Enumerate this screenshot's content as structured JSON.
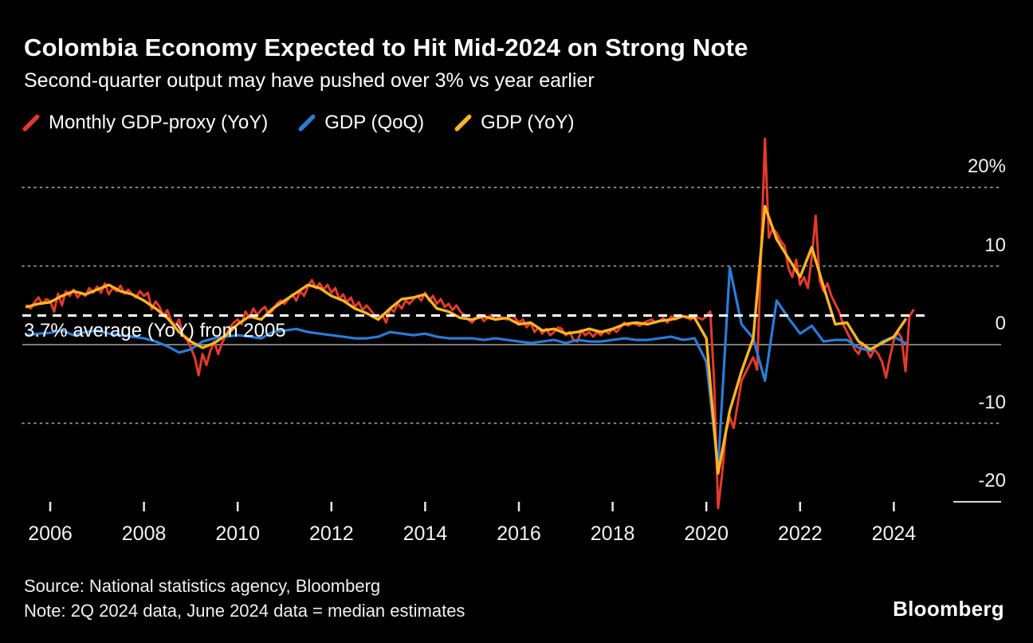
{
  "header": {
    "title": "Colombia Economy Expected to Hit Mid-2024 on Strong Note",
    "subtitle": "Second-quarter output may have pushed over 3% vs year earlier"
  },
  "legend": [
    {
      "label": "Monthly GDP-proxy (YoY)"
    },
    {
      "label": "GDP (QoQ)"
    },
    {
      "label": "GDP (YoY)"
    }
  ],
  "footer": {
    "source": "Source: National statistics agency, Bloomberg",
    "note": "Note: 2Q 2024 data, June 2024 data = median estimates",
    "brand": "Bloomberg"
  },
  "chart_data": {
    "type": "line",
    "title": "Colombia Economy Expected to Hit Mid-2024 on Strong Note",
    "subtitle": "Second-quarter output may have pushed over 3% vs year earlier",
    "grid": "dotted horizontal lines, labels on right",
    "legend_position": "top-left",
    "x_axis": {
      "range": [
        2005.4,
        2025.2
      ],
      "tick_values": [
        2006,
        2008,
        2010,
        2012,
        2014,
        2016,
        2018,
        2020,
        2022,
        2024
      ],
      "tick_labels": [
        "2006",
        "2008",
        "2010",
        "2012",
        "2014",
        "2016",
        "2018",
        "2020",
        "2022",
        "2024"
      ]
    },
    "y_axis": {
      "unit": "percent",
      "range": [
        -22,
        27
      ],
      "tick_values": [
        20,
        10,
        0,
        -10,
        -20
      ],
      "tick_labels": [
        "20%",
        "10",
        "0",
        "-10",
        "-20"
      ],
      "dotted_gridlines": [
        20,
        10,
        -10
      ],
      "zero_line": 0
    },
    "average_line": {
      "value": 3.7,
      "style": "white dashed",
      "label": "3.7% average (YoY) from 2005"
    },
    "series": [
      {
        "name": "Monthly GDP-proxy (YoY)",
        "color": "#e53a2c",
        "width": 3,
        "x_start": 2005.5,
        "x_step": 0.0833333,
        "values": [
          5.0,
          4.6,
          5.4,
          6.0,
          5.2,
          5.8,
          5.5,
          4.2,
          6.5,
          5.0,
          6.8,
          6.2,
          7.0,
          6.0,
          6.6,
          6.2,
          7.2,
          6.6,
          7.4,
          6.6,
          7.8,
          6.4,
          7.2,
          6.8,
          7.5,
          6.5,
          7.0,
          6.4,
          6.0,
          6.8,
          6.2,
          6.6,
          4.5,
          5.5,
          4.8,
          3.6,
          4.4,
          3.0,
          2.4,
          3.2,
          1.2,
          0.6,
          -0.4,
          -1.6,
          -3.9,
          -1.2,
          -2.6,
          -0.8,
          0.4,
          -1.2,
          0.2,
          1.2,
          2.2,
          2.8,
          3.2,
          2.6,
          4.2,
          3.4,
          4.6,
          3.8,
          4.4,
          4.8,
          3.8,
          4.4,
          5.2,
          5.6,
          5.2,
          5.8,
          6.4,
          5.6,
          6.8,
          6.2,
          7.4,
          8.2,
          7.2,
          7.8,
          7.0,
          7.6,
          6.6,
          7.2,
          5.8,
          6.4,
          5.4,
          6.0,
          4.8,
          5.4,
          4.4,
          5.0,
          4.4,
          3.8,
          3.2,
          3.8,
          2.8,
          4.6,
          4.2,
          5.2,
          4.6,
          5.6,
          5.2,
          5.8,
          6.2,
          5.6,
          6.6,
          5.6,
          6.2,
          5.2,
          5.8,
          4.8,
          5.2,
          4.4,
          5.0,
          4.2,
          3.8,
          3.2,
          2.8,
          3.4,
          3.8,
          3.0,
          3.4,
          3.8,
          3.2,
          3.6,
          3.4,
          3.2,
          3.8,
          3.4,
          2.8,
          3.2,
          2.2,
          2.8,
          1.6,
          2.2,
          1.4,
          2.0,
          1.2,
          1.6,
          2.2,
          2.0,
          1.2,
          1.6,
          0.6,
          0.4,
          1.8,
          1.2,
          1.6,
          1.0,
          1.6,
          1.2,
          1.8,
          1.4,
          2.0,
          1.6,
          2.2,
          2.8,
          2.4,
          2.8,
          2.6,
          2.4,
          2.8,
          3.0,
          3.2,
          2.8,
          3.0,
          3.4,
          2.8,
          3.6,
          3.2,
          3.4,
          3.6,
          3.4,
          3.2,
          3.6,
          3.4,
          3.2,
          3.6,
          4.2,
          -4.8,
          -20.8,
          -16.6,
          -11.2,
          -9.2,
          -10.6,
          -7.6,
          -4.6,
          -3.6,
          -2.6,
          -1.6,
          -3.2,
          11.4,
          26.2,
          13.6,
          14.8,
          14.2,
          13.2,
          12.6,
          9.8,
          8.6,
          10.8,
          7.6,
          8.6,
          7.2,
          11.2,
          16.4,
          8.2,
          6.8,
          7.8,
          6.2,
          5.2,
          4.2,
          2.6,
          1.6,
          0.6,
          -0.6,
          -1.2,
          0.2,
          -0.6,
          -1.6,
          -0.6,
          -1.2,
          -2.2,
          -4.2,
          -1.6,
          0.6,
          1.6,
          0.8,
          -3.4,
          3.6,
          4.4
        ]
      },
      {
        "name": "GDP (QoQ)",
        "color": "#2a7cd6",
        "width": 3.2,
        "x_start": 2005.5,
        "x_step": 0.25,
        "values": [
          1.2,
          1.4,
          1.5,
          1.8,
          1.2,
          1.6,
          1.8,
          1.4,
          1.2,
          1.0,
          0.8,
          0.4,
          -0.2,
          -1.0,
          -0.6,
          0.4,
          0.8,
          1.0,
          1.2,
          1.0,
          0.8,
          1.6,
          1.8,
          2.0,
          1.6,
          1.4,
          1.2,
          1.0,
          0.8,
          0.8,
          1.0,
          1.6,
          1.4,
          1.2,
          1.4,
          1.0,
          0.8,
          0.8,
          0.8,
          0.6,
          0.8,
          0.6,
          0.4,
          0.2,
          0.4,
          0.6,
          0.2,
          0.6,
          0.4,
          0.4,
          0.6,
          0.8,
          0.6,
          0.6,
          0.8,
          1.0,
          0.6,
          0.8,
          -2.2,
          -15.6,
          9.8,
          2.6,
          0.8,
          -4.6,
          5.6,
          3.4,
          1.4,
          2.4,
          0.4,
          0.6,
          0.6,
          -0.4,
          -0.8,
          0.4,
          1.0,
          0.2
        ]
      },
      {
        "name": "GDP (YoY)",
        "color": "#fcb525",
        "width": 3.4,
        "x_start": 2005.5,
        "x_step": 0.25,
        "values": [
          4.8,
          5.2,
          5.4,
          6.2,
          6.8,
          6.4,
          7.0,
          7.6,
          6.8,
          6.4,
          5.6,
          4.6,
          3.4,
          1.6,
          0.4,
          -0.4,
          0.2,
          1.2,
          2.6,
          3.6,
          3.2,
          4.6,
          5.6,
          6.6,
          7.6,
          7.2,
          6.2,
          5.6,
          4.6,
          4.0,
          3.2,
          4.6,
          5.8,
          6.0,
          6.4,
          4.6,
          4.2,
          3.4,
          3.2,
          3.6,
          3.2,
          3.4,
          2.6,
          2.8,
          1.8,
          2.0,
          1.4,
          1.6,
          2.0,
          1.6,
          2.0,
          2.6,
          2.8,
          2.6,
          3.0,
          3.2,
          3.6,
          3.4,
          0.8,
          -16.4,
          -8.4,
          -3.4,
          0.8,
          17.6,
          13.4,
          11.0,
          8.6,
          12.4,
          7.4,
          2.6,
          2.8,
          0.4,
          -0.6,
          0.2,
          1.0,
          3.2
        ]
      }
    ]
  }
}
